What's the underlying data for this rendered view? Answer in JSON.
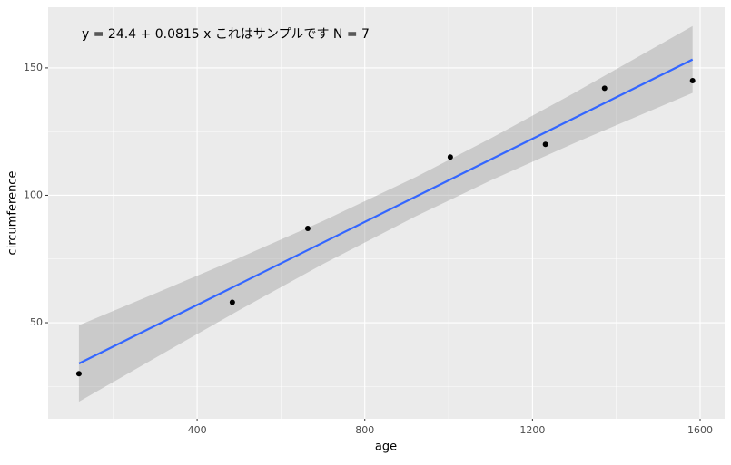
{
  "chart_data": {
    "type": "scatter",
    "annotation": "y = 24.4 + 0.0815 x  これはサンプルです  N = 7",
    "x_label": "age",
    "y_label": "circumference",
    "x": [
      118,
      484,
      664,
      1004,
      1231,
      1372,
      1582
    ],
    "values": [
      30,
      58,
      87,
      115,
      120,
      142,
      145
    ],
    "color": "#000000",
    "fit": {
      "color": "#3366FF",
      "x": [
        118,
        1582
      ],
      "values": [
        34.0,
        153.3
      ]
    },
    "band": {
      "color": "#999999",
      "x": [
        118,
        300,
        500,
        700,
        922,
        1100,
        1300,
        1582
      ],
      "lower": [
        19.0,
        36.2,
        54.9,
        73.0,
        91.8,
        105.8,
        120.5,
        140.2
      ],
      "upper": [
        49.0,
        61.5,
        75.4,
        89.9,
        107.2,
        122.3,
        140.2,
        166.4
      ]
    },
    "xlim": [
      44.5,
      1658.5
    ],
    "ylim": [
      12.3,
      173.8
    ],
    "xticks": [
      400,
      800,
      1200,
      1600
    ],
    "yticks": [
      50,
      100,
      150
    ],
    "grid": true
  }
}
